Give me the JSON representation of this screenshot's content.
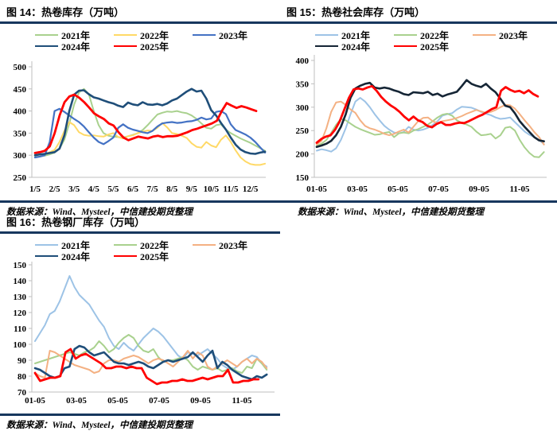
{
  "page": {
    "background": "#ffffff",
    "accent_rule_color": "#17375E"
  },
  "chart_data": [
    {
      "id": "fig14",
      "type": "line",
      "title": "图 14：热卷库存（万吨）",
      "source": "数据来源：Wind、Mysteel，中信建投期货整理",
      "ylim": [
        250,
        500
      ],
      "yticks": [
        250,
        300,
        350,
        400,
        450,
        500
      ],
      "grid": false,
      "legend_position": "top",
      "xticks": [
        {
          "pos": 0,
          "label": "1/5"
        },
        {
          "pos": 1,
          "label": "2/5"
        },
        {
          "pos": 2,
          "label": "3/5"
        },
        {
          "pos": 3,
          "label": "4/5"
        },
        {
          "pos": 4,
          "label": "5/5"
        },
        {
          "pos": 5,
          "label": "6/5"
        },
        {
          "pos": 6,
          "label": "7/5"
        },
        {
          "pos": 7,
          "label": "8/5"
        },
        {
          "pos": 8,
          "label": "9/5"
        },
        {
          "pos": 9,
          "label": "10/5"
        },
        {
          "pos": 10,
          "label": "11/5"
        },
        {
          "pos": 11,
          "label": "12/5"
        }
      ],
      "series": [
        {
          "name": "2021年",
          "color": "#A9D18E",
          "width": 2,
          "x_end": 11.75,
          "values": [
            296,
            297,
            299,
            302,
            306,
            315,
            335,
            372,
            415,
            442,
            450,
            438,
            400,
            368,
            350,
            344,
            342,
            341,
            340,
            343,
            346,
            350,
            357,
            368,
            380,
            392,
            396,
            399,
            398,
            400,
            397,
            395,
            390,
            382,
            372,
            362,
            360,
            368,
            370,
            358,
            350,
            344,
            338,
            333,
            328,
            322,
            316,
            310
          ]
        },
        {
          "name": "2022年",
          "color": "#FFD966",
          "width": 2,
          "x_end": 11.75,
          "values": [
            300,
            301,
            303,
            307,
            312,
            330,
            355,
            375,
            368,
            352,
            346,
            344,
            345,
            343,
            342,
            347,
            350,
            341,
            338,
            343,
            345,
            350,
            353,
            356,
            355,
            362,
            373,
            363,
            350,
            348,
            344,
            339,
            327,
            319,
            317,
            330,
            322,
            318,
            335,
            345,
            330,
            311,
            295,
            286,
            280,
            278,
            278,
            281
          ]
        },
        {
          "name": "2023年",
          "color": "#4472C4",
          "width": 2.2,
          "x_end": 11.75,
          "values": [
            295,
            297,
            300,
            330,
            400,
            405,
            398,
            390,
            382,
            375,
            365,
            352,
            340,
            330,
            325,
            332,
            340,
            362,
            370,
            362,
            358,
            355,
            352,
            350,
            355,
            365,
            372,
            374,
            375,
            373,
            374,
            376,
            377,
            380,
            385,
            381,
            383,
            398,
            400,
            393,
            370,
            357,
            352,
            347,
            340,
            330,
            318,
            306
          ]
        },
        {
          "name": "2024年",
          "color": "#1F4E79",
          "width": 2.6,
          "x_end": 11.75,
          "values": [
            300,
            302,
            303,
            305,
            307,
            315,
            345,
            400,
            437,
            446,
            447,
            438,
            431,
            428,
            424,
            420,
            417,
            412,
            409,
            419,
            415,
            413,
            420,
            415,
            414,
            416,
            413,
            417,
            424,
            428,
            436,
            444,
            450,
            444,
            446,
            428,
            402,
            390,
            373,
            358,
            340,
            324,
            313,
            307,
            304,
            303,
            306,
            308
          ]
        },
        {
          "name": "2025年",
          "color": "#FF0000",
          "width": 2.8,
          "x_end": 11.3,
          "values": [
            305,
            307,
            310,
            320,
            350,
            390,
            420,
            433,
            437,
            430,
            420,
            408,
            395,
            388,
            382,
            372,
            367,
            352,
            340,
            334,
            338,
            342,
            340,
            338,
            342,
            344,
            341,
            343,
            343,
            344,
            348,
            352,
            357,
            360,
            364,
            368,
            372,
            378,
            400,
            418,
            412,
            407,
            411,
            408,
            404,
            400
          ]
        }
      ]
    },
    {
      "id": "fig15",
      "type": "line",
      "title": "图 15：热卷社会库存（万吨）",
      "source": "数据来源：Wind、Mysteel，中信建投期货整理",
      "ylim": [
        150,
        400
      ],
      "yticks": [
        150,
        200,
        250,
        300,
        350,
        400
      ],
      "grid": false,
      "legend_position": "top",
      "xticks": [
        {
          "pos": 0,
          "label": "01-05"
        },
        {
          "pos": 2,
          "label": "03-05"
        },
        {
          "pos": 4,
          "label": "05-05"
        },
        {
          "pos": 6,
          "label": "07-05"
        },
        {
          "pos": 8,
          "label": "09-05"
        },
        {
          "pos": 10,
          "label": "11-05"
        }
      ],
      "series": [
        {
          "name": "2021年",
          "color": "#9DC3E6",
          "width": 2,
          "x_end": 11.2,
          "values": [
            207,
            210,
            208,
            205,
            212,
            230,
            255,
            285,
            312,
            320,
            312,
            300,
            285,
            272,
            260,
            252,
            246,
            244,
            247,
            258,
            252,
            250,
            252,
            256,
            262,
            270,
            282,
            285,
            287,
            295,
            301,
            300,
            299,
            295,
            290,
            286,
            283,
            278,
            275,
            276,
            278,
            268,
            258,
            248,
            241,
            236,
            230,
            221
          ]
        },
        {
          "name": "2022年",
          "color": "#A9D18E",
          "width": 2,
          "x_end": 11.2,
          "values": [
            217,
            222,
            230,
            245,
            262,
            275,
            272,
            265,
            258,
            253,
            249,
            245,
            241,
            242,
            245,
            247,
            236,
            244,
            246,
            244,
            250,
            253,
            258,
            263,
            270,
            278,
            284,
            286,
            282,
            272,
            266,
            263,
            258,
            248,
            240,
            241,
            243,
            233,
            240,
            256,
            258,
            250,
            230,
            214,
            202,
            194,
            193,
            204
          ]
        },
        {
          "name": "2023年",
          "color": "#F4B183",
          "width": 2,
          "x_end": 11.2,
          "values": [
            220,
            228,
            255,
            290,
            310,
            312,
            305,
            295,
            288,
            272,
            260,
            255,
            252,
            248,
            243,
            240,
            243,
            248,
            252,
            246,
            258,
            270,
            277,
            278,
            270,
            266,
            270,
            272,
            274,
            277,
            281,
            286,
            290,
            294,
            291,
            288,
            290,
            294,
            300,
            305,
            304,
            297,
            285,
            272,
            260,
            247,
            236,
            220
          ]
        },
        {
          "name": "2024年",
          "color": "#152535",
          "width": 2.6,
          "x_end": 11.2,
          "values": [
            215,
            218,
            222,
            228,
            240,
            258,
            285,
            320,
            340,
            346,
            350,
            352,
            342,
            340,
            342,
            340,
            336,
            333,
            328,
            326,
            332,
            331,
            330,
            333,
            326,
            329,
            323,
            327,
            330,
            333,
            345,
            358,
            350,
            346,
            343,
            350,
            340,
            332,
            318,
            303,
            300,
            287,
            270,
            258,
            247,
            236,
            229,
            227
          ]
        },
        {
          "name": "2025年",
          "color": "#FF0000",
          "width": 2.8,
          "x_end": 10.9,
          "values": [
            224,
            232,
            237,
            240,
            252,
            270,
            295,
            320,
            338,
            340,
            338,
            342,
            345,
            335,
            322,
            312,
            304,
            298,
            290,
            280,
            272,
            280,
            272,
            268,
            260,
            257,
            264,
            268,
            262,
            262,
            265,
            267,
            266,
            270,
            275,
            280,
            284,
            290,
            296,
            300,
            335,
            343,
            337,
            333,
            335,
            330,
            336,
            328,
            323
          ]
        }
      ]
    },
    {
      "id": "fig16",
      "type": "line",
      "title": "图 16：热卷钢厂库存（万吨）",
      "source": "数据来源：Wind、Mysteel，中信建投期货整理",
      "ylim": [
        70,
        150
      ],
      "yticks": [
        70,
        80,
        90,
        100,
        110,
        120,
        130,
        140,
        150
      ],
      "grid": false,
      "legend_position": "top",
      "xticks": [
        {
          "pos": 0,
          "label": "01-05"
        },
        {
          "pos": 2,
          "label": "03-05"
        },
        {
          "pos": 4,
          "label": "05-05"
        },
        {
          "pos": 6,
          "label": "07-05"
        },
        {
          "pos": 8,
          "label": "09-05"
        },
        {
          "pos": 10,
          "label": "11-05"
        }
      ],
      "series": [
        {
          "name": "2021年",
          "color": "#9DC3E6",
          "width": 2,
          "x_end": 11.2,
          "values": [
            102,
            107,
            112,
            119,
            121,
            127,
            135,
            143,
            136,
            131,
            128,
            125,
            120,
            115,
            111,
            104,
            99,
            97,
            101,
            98,
            96,
            100,
            104,
            107,
            110,
            108,
            105,
            101,
            97,
            93,
            91,
            95,
            94,
            93,
            95,
            97,
            94,
            91,
            87,
            85,
            84,
            86,
            89,
            91,
            93,
            92,
            88,
            86
          ]
        },
        {
          "name": "2022年",
          "color": "#A9D18E",
          "width": 2,
          "x_end": 11.2,
          "values": [
            88,
            89,
            90,
            91,
            92,
            93,
            94,
            95,
            94,
            93,
            95,
            96,
            98,
            102,
            99,
            95,
            97,
            101,
            104,
            106,
            104,
            99,
            96,
            95,
            97,
            92,
            89,
            90,
            90,
            91,
            92,
            90,
            86,
            84,
            86,
            85,
            84,
            85,
            83,
            84,
            85,
            83,
            82,
            86,
            85,
            91,
            88,
            84
          ]
        },
        {
          "name": "2023年",
          "color": "#F4B183",
          "width": 2,
          "x_end": 11.2,
          "values": [
            82,
            80,
            79,
            96,
            95,
            93,
            91,
            89,
            87,
            86,
            85,
            84,
            82,
            83,
            88,
            90,
            90,
            89,
            91,
            92,
            93,
            92,
            90,
            88,
            90,
            91,
            90,
            88,
            86,
            89,
            92,
            96,
            91,
            95,
            93,
            86,
            84,
            86,
            88,
            90,
            88,
            86,
            89,
            91,
            88,
            91,
            89,
            85
          ]
        },
        {
          "name": "2024年",
          "color": "#1F4E79",
          "width": 2.6,
          "x_end": 11.2,
          "values": [
            85,
            84,
            82,
            80,
            79,
            80,
            85,
            86,
            97,
            99,
            98,
            95,
            93,
            94,
            95,
            92,
            89,
            88,
            88,
            87,
            88,
            89,
            88,
            86,
            85,
            87,
            89,
            90,
            89,
            90,
            91,
            92,
            95,
            92,
            89,
            93,
            96,
            85,
            89,
            87,
            84,
            82,
            80,
            79,
            78,
            80,
            79,
            81
          ]
        },
        {
          "name": "2025年",
          "color": "#FF0000",
          "width": 2.8,
          "x_end": 10.8,
          "values": [
            82,
            77,
            78,
            79,
            79,
            80,
            95,
            97,
            91,
            93,
            94,
            92,
            90,
            88,
            85,
            85,
            86,
            86,
            85,
            86,
            85,
            85,
            79,
            77,
            75,
            76,
            76,
            77,
            77,
            78,
            77,
            77,
            78,
            79,
            78,
            79,
            80,
            80,
            84,
            76,
            76,
            77,
            77,
            78,
            78
          ]
        }
      ]
    }
  ]
}
